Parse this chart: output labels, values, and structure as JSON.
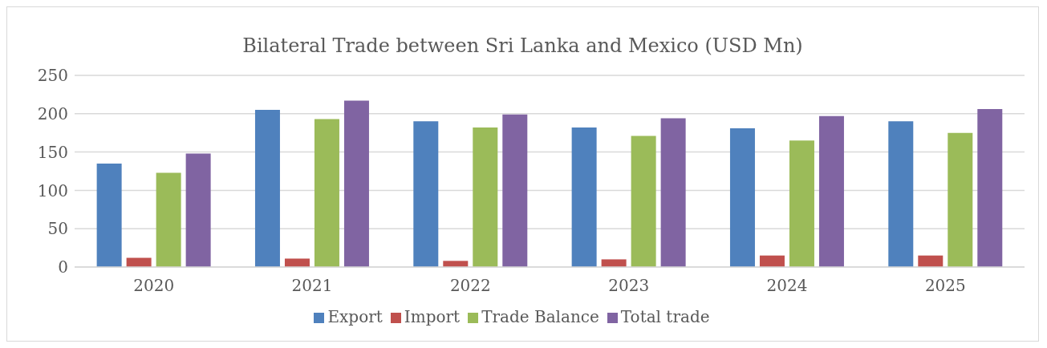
{
  "chart_data": {
    "type": "bar",
    "title": "Bilateral Trade between Sri Lanka and Mexico (USD Mn)",
    "categories": [
      "2020",
      "2021",
      "2022",
      "2023",
      "2024",
      "2025"
    ],
    "series": [
      {
        "name": "Export",
        "color": "#4f81bd",
        "values": [
          135,
          205,
          190,
          182,
          181,
          190
        ]
      },
      {
        "name": "Import",
        "color": "#c0504d",
        "values": [
          12,
          11,
          8,
          10,
          15,
          15
        ]
      },
      {
        "name": "Trade Balance",
        "color": "#9bbb59",
        "values": [
          123,
          193,
          182,
          171,
          165,
          175
        ]
      },
      {
        "name": "Total trade",
        "color": "#8064a2",
        "values": [
          148,
          217,
          199,
          194,
          197,
          206
        ]
      }
    ],
    "ylim": [
      0,
      250
    ],
    "yticks": [
      0,
      50,
      100,
      150,
      200,
      250
    ],
    "grid": "y",
    "legend": "bottom"
  }
}
